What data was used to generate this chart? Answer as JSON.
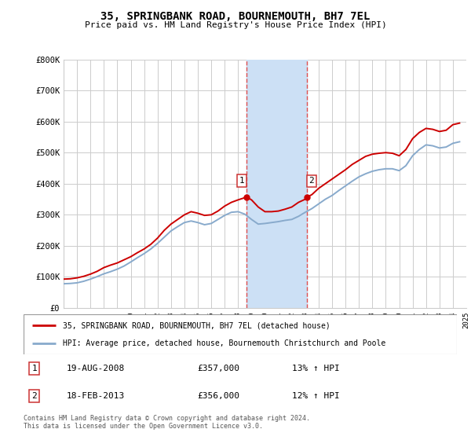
{
  "title": "35, SPRINGBANK ROAD, BOURNEMOUTH, BH7 7EL",
  "subtitle": "Price paid vs. HM Land Registry's House Price Index (HPI)",
  "ylim": [
    0,
    800000
  ],
  "yticks": [
    0,
    100000,
    200000,
    300000,
    400000,
    500000,
    600000,
    700000,
    800000
  ],
  "ytick_labels": [
    "£0",
    "£100K",
    "£200K",
    "£300K",
    "£400K",
    "£500K",
    "£600K",
    "£700K",
    "£800K"
  ],
  "grid_color": "#cccccc",
  "sale1_date_x": 2008.63,
  "sale1_price": 357000,
  "sale2_date_x": 2013.12,
  "sale2_price": 356000,
  "shade_color": "#cce0f5",
  "dashed_line_color": "#e05050",
  "house_line_color": "#cc0000",
  "hpi_line_color": "#88aacc",
  "legend_house": "35, SPRINGBANK ROAD, BOURNEMOUTH, BH7 7EL (detached house)",
  "legend_hpi": "HPI: Average price, detached house, Bournemouth Christchurch and Poole",
  "table_row1": [
    "1",
    "19-AUG-2008",
    "£357,000",
    "13% ↑ HPI"
  ],
  "table_row2": [
    "2",
    "18-FEB-2013",
    "£356,000",
    "12% ↑ HPI"
  ],
  "footer": "Contains HM Land Registry data © Crown copyright and database right 2024.\nThis data is licensed under the Open Government Licence v3.0.",
  "xmin": 1995,
  "xmax": 2025,
  "house_x": [
    1995.0,
    1995.5,
    1996.0,
    1996.5,
    1997.0,
    1997.5,
    1998.0,
    1998.5,
    1999.0,
    1999.5,
    2000.0,
    2000.5,
    2001.0,
    2001.5,
    2002.0,
    2002.5,
    2003.0,
    2003.5,
    2004.0,
    2004.5,
    2005.0,
    2005.5,
    2006.0,
    2006.5,
    2007.0,
    2007.5,
    2008.0,
    2008.5,
    2008.63,
    2009.0,
    2009.5,
    2010.0,
    2010.5,
    2011.0,
    2011.5,
    2012.0,
    2012.5,
    2013.0,
    2013.12,
    2013.5,
    2014.0,
    2014.5,
    2015.0,
    2015.5,
    2016.0,
    2016.5,
    2017.0,
    2017.5,
    2018.0,
    2018.5,
    2019.0,
    2019.5,
    2020.0,
    2020.5,
    2021.0,
    2021.5,
    2022.0,
    2022.5,
    2023.0,
    2023.5,
    2024.0,
    2024.5
  ],
  "house_y": [
    93000,
    94000,
    97000,
    102000,
    109000,
    118000,
    130000,
    138000,
    145000,
    155000,
    165000,
    178000,
    190000,
    205000,
    225000,
    250000,
    270000,
    285000,
    300000,
    310000,
    305000,
    298000,
    300000,
    312000,
    328000,
    340000,
    348000,
    355000,
    357000,
    348000,
    325000,
    310000,
    310000,
    312000,
    318000,
    325000,
    340000,
    350000,
    356000,
    365000,
    385000,
    400000,
    415000,
    430000,
    445000,
    462000,
    475000,
    488000,
    495000,
    498000,
    500000,
    498000,
    490000,
    510000,
    545000,
    565000,
    578000,
    575000,
    568000,
    572000,
    590000,
    595000
  ],
  "hpi_x": [
    1995.0,
    1995.5,
    1996.0,
    1996.5,
    1997.0,
    1997.5,
    1998.0,
    1998.5,
    1999.0,
    1999.5,
    2000.0,
    2000.5,
    2001.0,
    2001.5,
    2002.0,
    2002.5,
    2003.0,
    2003.5,
    2004.0,
    2004.5,
    2005.0,
    2005.5,
    2006.0,
    2006.5,
    2007.0,
    2007.5,
    2008.0,
    2008.5,
    2009.0,
    2009.5,
    2010.0,
    2010.5,
    2011.0,
    2011.5,
    2012.0,
    2012.5,
    2013.0,
    2013.5,
    2014.0,
    2014.5,
    2015.0,
    2015.5,
    2016.0,
    2016.5,
    2017.0,
    2017.5,
    2018.0,
    2018.5,
    2019.0,
    2019.5,
    2020.0,
    2020.5,
    2021.0,
    2021.5,
    2022.0,
    2022.5,
    2023.0,
    2023.5,
    2024.0,
    2024.5
  ],
  "hpi_y": [
    78000,
    79000,
    81000,
    86000,
    93000,
    101000,
    110000,
    117000,
    125000,
    135000,
    148000,
    162000,
    175000,
    190000,
    208000,
    228000,
    248000,
    262000,
    275000,
    280000,
    275000,
    268000,
    272000,
    285000,
    298000,
    308000,
    310000,
    302000,
    285000,
    270000,
    272000,
    275000,
    278000,
    282000,
    285000,
    295000,
    308000,
    320000,
    335000,
    350000,
    362000,
    378000,
    393000,
    408000,
    422000,
    432000,
    440000,
    445000,
    448000,
    448000,
    442000,
    458000,
    490000,
    510000,
    525000,
    522000,
    515000,
    518000,
    530000,
    535000
  ]
}
